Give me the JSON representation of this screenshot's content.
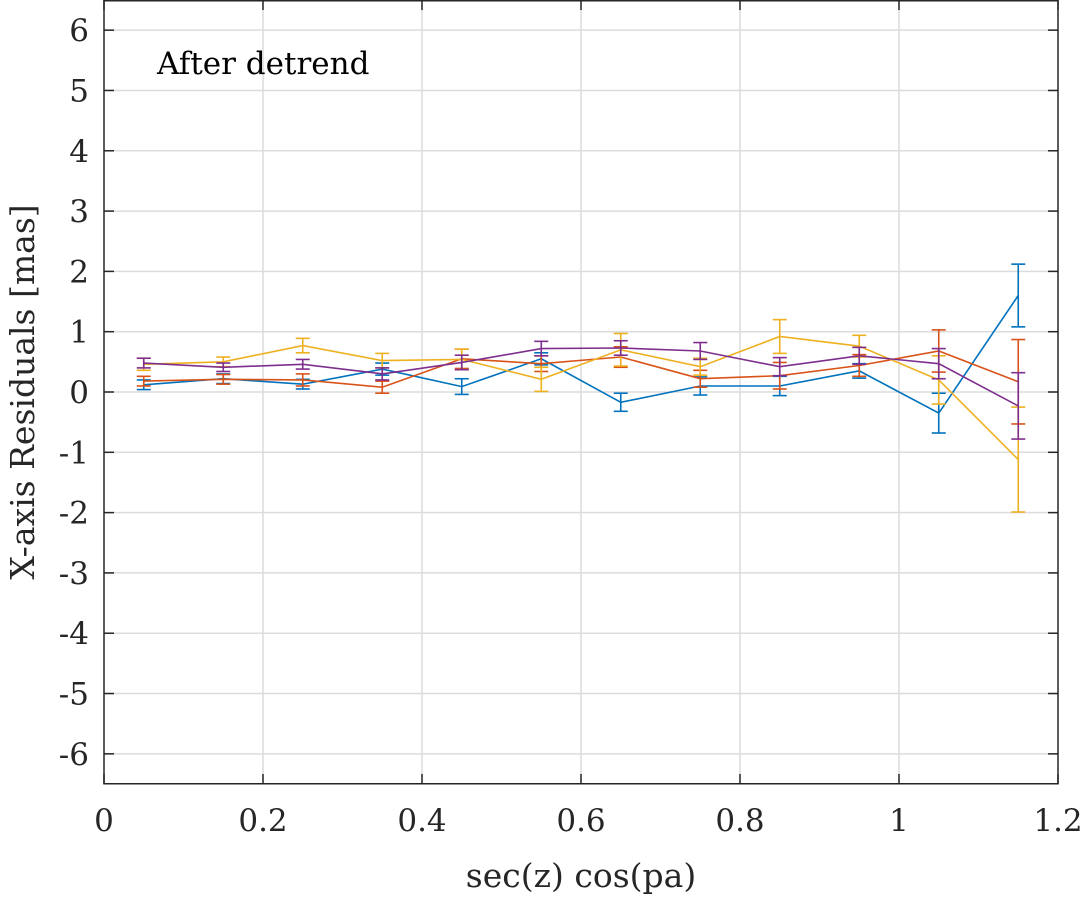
{
  "chart_data": {
    "type": "line",
    "title": "",
    "annotation": "After detrend",
    "xlabel": "sec(z) cos(pa)",
    "ylabel": "X-axis Residuals [mas]",
    "xlim": [
      0,
      1.2
    ],
    "ylim": [
      -6.5,
      6.5
    ],
    "grid": true,
    "xticks": [
      0,
      0.2,
      0.4,
      0.6,
      0.8,
      1,
      1.2
    ],
    "xtick_labels": [
      "0",
      "0.2",
      "0.4",
      "0.6",
      "0.8",
      "1",
      "1.2"
    ],
    "yticks": [
      6,
      5,
      4,
      3,
      2,
      1,
      0,
      -1,
      -2,
      -3,
      -4,
      -5,
      -6
    ],
    "ytick_labels": [
      "6",
      "5",
      "4",
      "3",
      "2",
      "1",
      "0",
      "-1",
      "-2",
      "-3",
      "-4",
      "-5",
      "-6"
    ],
    "x": [
      0.05,
      0.15,
      0.25,
      0.35,
      0.45,
      0.55,
      0.65,
      0.75,
      0.85,
      0.95,
      1.05,
      1.15
    ],
    "series": [
      {
        "name": "series-1",
        "color": "#0072BD",
        "values": [
          0.12,
          0.22,
          0.13,
          0.38,
          0.09,
          0.55,
          -0.17,
          0.1,
          0.1,
          0.35,
          -0.35,
          1.6
        ],
        "errors": [
          0.08,
          0.08,
          0.08,
          0.1,
          0.13,
          0.1,
          0.15,
          0.15,
          0.16,
          0.12,
          0.33,
          0.52
        ]
      },
      {
        "name": "series-2",
        "color": "#D95319",
        "values": [
          0.18,
          0.21,
          0.2,
          0.08,
          0.55,
          0.47,
          0.58,
          0.22,
          0.27,
          0.44,
          0.68,
          0.17
        ],
        "errors": [
          0.08,
          0.08,
          0.1,
          0.1,
          0.16,
          0.13,
          0.17,
          0.14,
          0.22,
          0.18,
          0.35,
          0.7
        ]
      },
      {
        "name": "series-3",
        "color": "#EDB120",
        "values": [
          0.46,
          0.5,
          0.77,
          0.52,
          0.54,
          0.21,
          0.7,
          0.42,
          0.92,
          0.76,
          0.2,
          -1.12
        ],
        "errors": [
          0.1,
          0.08,
          0.12,
          0.12,
          0.17,
          0.2,
          0.27,
          0.14,
          0.28,
          0.18,
          0.4,
          0.87
        ]
      },
      {
        "name": "series-4",
        "color": "#7E2F8E",
        "values": [
          0.48,
          0.41,
          0.46,
          0.3,
          0.49,
          0.72,
          0.73,
          0.68,
          0.42,
          0.6,
          0.47,
          -0.23
        ],
        "errors": [
          0.08,
          0.07,
          0.08,
          0.1,
          0.12,
          0.12,
          0.12,
          0.14,
          0.15,
          0.14,
          0.25,
          0.55
        ]
      }
    ]
  }
}
